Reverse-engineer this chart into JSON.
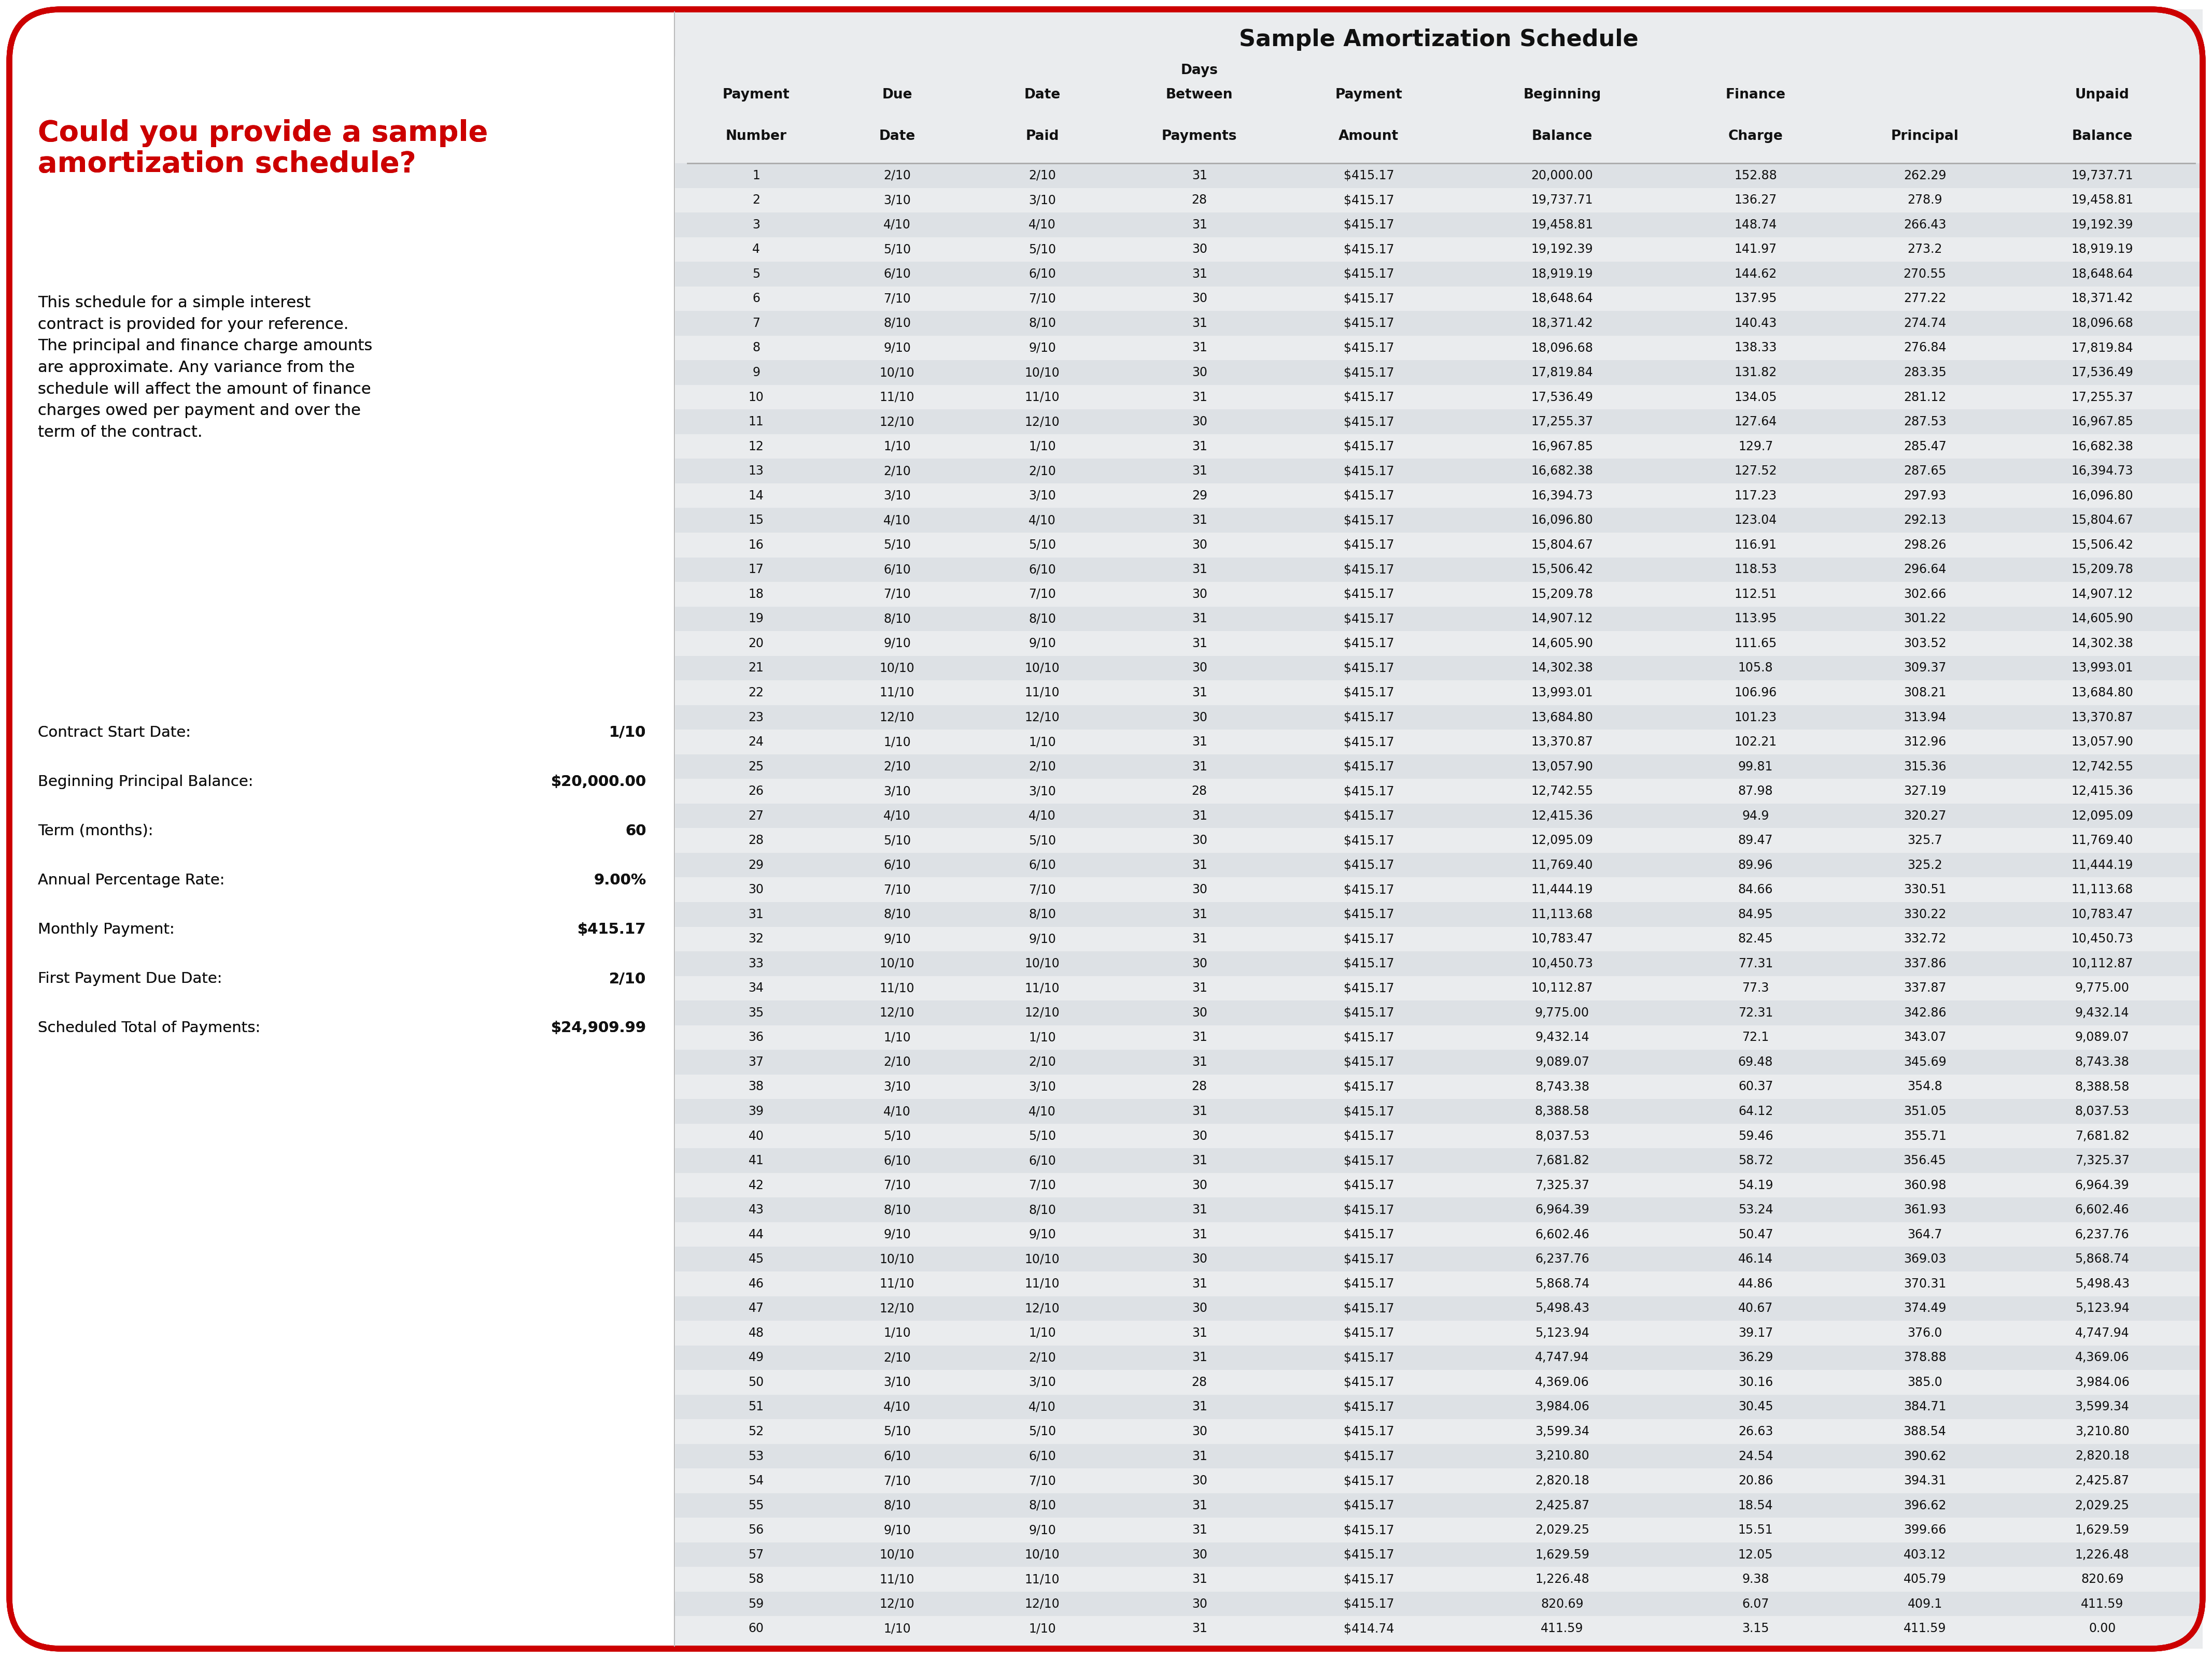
{
  "title": "Sample Amortization Schedule",
  "bg_color": "#ffffff",
  "right_panel_bg": "#eaecee",
  "row_alt_bg": "#dde1e5",
  "border_color": "#cc0000",
  "col_headers_line1": [
    "Payment",
    "Due",
    "Date",
    "Days",
    "Payment",
    "Beginning",
    "Finance",
    "",
    "Unpaid"
  ],
  "col_headers_line2": [
    "Number",
    "Date",
    "Paid",
    "Between",
    "Amount",
    "Balance",
    "Charge",
    "Principal",
    "Balance"
  ],
  "col_headers_line3": [
    "",
    "",
    "",
    "Payments",
    "",
    "",
    "",
    "",
    ""
  ],
  "question_title": "Could you provide a sample\namortization schedule?",
  "question_body": "This schedule for a simple interest\ncontract is provided for your reference.\nThe principal and finance charge amounts\nare approximate. Any variance from the\nschedule will affect the amount of finance\ncharges owed per payment and over the\nterm of the contract.",
  "contract_info": [
    [
      "Contract Start Date:",
      "1/10"
    ],
    [
      "Beginning Principal Balance:",
      "$20,000.00"
    ],
    [
      "Term (months):",
      "60"
    ],
    [
      "Annual Percentage Rate:",
      "9.00%"
    ],
    [
      "Monthly Payment:",
      "$415.17"
    ],
    [
      "First Payment Due Date:",
      "2/10"
    ],
    [
      "Scheduled Total of Payments:",
      "$24,909.99"
    ]
  ],
  "table_data": [
    [
      1,
      "2/10",
      "2/10",
      31,
      "$415.17",
      "20,000.00",
      152.88,
      262.29,
      "19,737.71"
    ],
    [
      2,
      "3/10",
      "3/10",
      28,
      "$415.17",
      "19,737.71",
      136.27,
      278.9,
      "19,458.81"
    ],
    [
      3,
      "4/10",
      "4/10",
      31,
      "$415.17",
      "19,458.81",
      148.74,
      266.43,
      "19,192.39"
    ],
    [
      4,
      "5/10",
      "5/10",
      30,
      "$415.17",
      "19,192.39",
      141.97,
      273.2,
      "18,919.19"
    ],
    [
      5,
      "6/10",
      "6/10",
      31,
      "$415.17",
      "18,919.19",
      144.62,
      270.55,
      "18,648.64"
    ],
    [
      6,
      "7/10",
      "7/10",
      30,
      "$415.17",
      "18,648.64",
      137.95,
      277.22,
      "18,371.42"
    ],
    [
      7,
      "8/10",
      "8/10",
      31,
      "$415.17",
      "18,371.42",
      140.43,
      274.74,
      "18,096.68"
    ],
    [
      8,
      "9/10",
      "9/10",
      31,
      "$415.17",
      "18,096.68",
      138.33,
      276.84,
      "17,819.84"
    ],
    [
      9,
      "10/10",
      "10/10",
      30,
      "$415.17",
      "17,819.84",
      131.82,
      283.35,
      "17,536.49"
    ],
    [
      10,
      "11/10",
      "11/10",
      31,
      "$415.17",
      "17,536.49",
      134.05,
      281.12,
      "17,255.37"
    ],
    [
      11,
      "12/10",
      "12/10",
      30,
      "$415.17",
      "17,255.37",
      127.64,
      287.53,
      "16,967.85"
    ],
    [
      12,
      "1/10",
      "1/10",
      31,
      "$415.17",
      "16,967.85",
      129.7,
      285.47,
      "16,682.38"
    ],
    [
      13,
      "2/10",
      "2/10",
      31,
      "$415.17",
      "16,682.38",
      127.52,
      287.65,
      "16,394.73"
    ],
    [
      14,
      "3/10",
      "3/10",
      29,
      "$415.17",
      "16,394.73",
      117.23,
      297.93,
      "16,096.80"
    ],
    [
      15,
      "4/10",
      "4/10",
      31,
      "$415.17",
      "16,096.80",
      123.04,
      292.13,
      "15,804.67"
    ],
    [
      16,
      "5/10",
      "5/10",
      30,
      "$415.17",
      "15,804.67",
      116.91,
      298.26,
      "15,506.42"
    ],
    [
      17,
      "6/10",
      "6/10",
      31,
      "$415.17",
      "15,506.42",
      118.53,
      296.64,
      "15,209.78"
    ],
    [
      18,
      "7/10",
      "7/10",
      30,
      "$415.17",
      "15,209.78",
      112.51,
      302.66,
      "14,907.12"
    ],
    [
      19,
      "8/10",
      "8/10",
      31,
      "$415.17",
      "14,907.12",
      113.95,
      301.22,
      "14,605.90"
    ],
    [
      20,
      "9/10",
      "9/10",
      31,
      "$415.17",
      "14,605.90",
      111.65,
      303.52,
      "14,302.38"
    ],
    [
      21,
      "10/10",
      "10/10",
      30,
      "$415.17",
      "14,302.38",
      105.8,
      309.37,
      "13,993.01"
    ],
    [
      22,
      "11/10",
      "11/10",
      31,
      "$415.17",
      "13,993.01",
      106.96,
      308.21,
      "13,684.80"
    ],
    [
      23,
      "12/10",
      "12/10",
      30,
      "$415.17",
      "13,684.80",
      101.23,
      313.94,
      "13,370.87"
    ],
    [
      24,
      "1/10",
      "1/10",
      31,
      "$415.17",
      "13,370.87",
      102.21,
      312.96,
      "13,057.90"
    ],
    [
      25,
      "2/10",
      "2/10",
      31,
      "$415.17",
      "13,057.90",
      99.81,
      315.36,
      "12,742.55"
    ],
    [
      26,
      "3/10",
      "3/10",
      28,
      "$415.17",
      "12,742.55",
      87.98,
      327.19,
      "12,415.36"
    ],
    [
      27,
      "4/10",
      "4/10",
      31,
      "$415.17",
      "12,415.36",
      94.9,
      320.27,
      "12,095.09"
    ],
    [
      28,
      "5/10",
      "5/10",
      30,
      "$415.17",
      "12,095.09",
      89.47,
      325.7,
      "11,769.40"
    ],
    [
      29,
      "6/10",
      "6/10",
      31,
      "$415.17",
      "11,769.40",
      89.96,
      325.2,
      "11,444.19"
    ],
    [
      30,
      "7/10",
      "7/10",
      30,
      "$415.17",
      "11,444.19",
      84.66,
      330.51,
      "11,113.68"
    ],
    [
      31,
      "8/10",
      "8/10",
      31,
      "$415.17",
      "11,113.68",
      84.95,
      330.22,
      "10,783.47"
    ],
    [
      32,
      "9/10",
      "9/10",
      31,
      "$415.17",
      "10,783.47",
      82.45,
      332.72,
      "10,450.73"
    ],
    [
      33,
      "10/10",
      "10/10",
      30,
      "$415.17",
      "10,450.73",
      77.31,
      337.86,
      "10,112.87"
    ],
    [
      34,
      "11/10",
      "11/10",
      31,
      "$415.17",
      "10,112.87",
      77.3,
      337.87,
      "9,775.00"
    ],
    [
      35,
      "12/10",
      "12/10",
      30,
      "$415.17",
      "9,775.00",
      72.31,
      342.86,
      "9,432.14"
    ],
    [
      36,
      "1/10",
      "1/10",
      31,
      "$415.17",
      "9,432.14",
      72.1,
      343.07,
      "9,089.07"
    ],
    [
      37,
      "2/10",
      "2/10",
      31,
      "$415.17",
      "9,089.07",
      69.48,
      345.69,
      "8,743.38"
    ],
    [
      38,
      "3/10",
      "3/10",
      28,
      "$415.17",
      "8,743.38",
      60.37,
      354.8,
      "8,388.58"
    ],
    [
      39,
      "4/10",
      "4/10",
      31,
      "$415.17",
      "8,388.58",
      64.12,
      351.05,
      "8,037.53"
    ],
    [
      40,
      "5/10",
      "5/10",
      30,
      "$415.17",
      "8,037.53",
      59.46,
      355.71,
      "7,681.82"
    ],
    [
      41,
      "6/10",
      "6/10",
      31,
      "$415.17",
      "7,681.82",
      58.72,
      356.45,
      "7,325.37"
    ],
    [
      42,
      "7/10",
      "7/10",
      30,
      "$415.17",
      "7,325.37",
      54.19,
      360.98,
      "6,964.39"
    ],
    [
      43,
      "8/10",
      "8/10",
      31,
      "$415.17",
      "6,964.39",
      53.24,
      361.93,
      "6,602.46"
    ],
    [
      44,
      "9/10",
      "9/10",
      31,
      "$415.17",
      "6,602.46",
      50.47,
      364.7,
      "6,237.76"
    ],
    [
      45,
      "10/10",
      "10/10",
      30,
      "$415.17",
      "6,237.76",
      46.14,
      369.03,
      "5,868.74"
    ],
    [
      46,
      "11/10",
      "11/10",
      31,
      "$415.17",
      "5,868.74",
      44.86,
      370.31,
      "5,498.43"
    ],
    [
      47,
      "12/10",
      "12/10",
      30,
      "$415.17",
      "5,498.43",
      40.67,
      374.49,
      "5,123.94"
    ],
    [
      48,
      "1/10",
      "1/10",
      31,
      "$415.17",
      "5,123.94",
      39.17,
      376.0,
      "4,747.94"
    ],
    [
      49,
      "2/10",
      "2/10",
      31,
      "$415.17",
      "4,747.94",
      36.29,
      378.88,
      "4,369.06"
    ],
    [
      50,
      "3/10",
      "3/10",
      28,
      "$415.17",
      "4,369.06",
      30.16,
      385.0,
      "3,984.06"
    ],
    [
      51,
      "4/10",
      "4/10",
      31,
      "$415.17",
      "3,984.06",
      30.45,
      384.71,
      "3,599.34"
    ],
    [
      52,
      "5/10",
      "5/10",
      30,
      "$415.17",
      "3,599.34",
      26.63,
      388.54,
      "3,210.80"
    ],
    [
      53,
      "6/10",
      "6/10",
      31,
      "$415.17",
      "3,210.80",
      24.54,
      390.62,
      "2,820.18"
    ],
    [
      54,
      "7/10",
      "7/10",
      30,
      "$415.17",
      "2,820.18",
      20.86,
      394.31,
      "2,425.87"
    ],
    [
      55,
      "8/10",
      "8/10",
      31,
      "$415.17",
      "2,425.87",
      18.54,
      396.62,
      "2,029.25"
    ],
    [
      56,
      "9/10",
      "9/10",
      31,
      "$415.17",
      "2,029.25",
      15.51,
      399.66,
      "1,629.59"
    ],
    [
      57,
      "10/10",
      "10/10",
      30,
      "$415.17",
      "1,629.59",
      12.05,
      403.12,
      "1,226.48"
    ],
    [
      58,
      "11/10",
      "11/10",
      31,
      "$415.17",
      "1,226.48",
      9.38,
      405.79,
      "820.69"
    ],
    [
      59,
      "12/10",
      "12/10",
      30,
      "$415.17",
      "820.69",
      6.07,
      409.1,
      "411.59"
    ],
    [
      60,
      "1/10",
      "1/10",
      31,
      "$414.74",
      "411.59",
      3.15,
      411.59,
      "0.00"
    ]
  ]
}
